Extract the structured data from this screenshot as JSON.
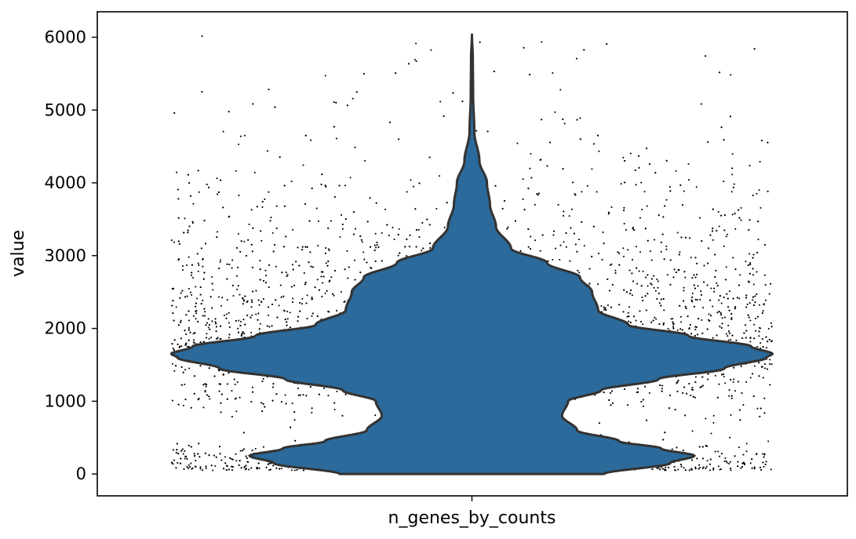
{
  "chart_data": {
    "type": "violin",
    "categories": [
      "n_genes_by_counts"
    ],
    "ylabel": "value",
    "xlabel": "",
    "ylim": [
      -300,
      6350
    ],
    "yticks": [
      0,
      1000,
      2000,
      3000,
      4000,
      5000,
      6000
    ],
    "grid": false,
    "legend": "none",
    "violin_color": "#2b6a9a",
    "outline_color": "#333333",
    "point_color": "#000000",
    "stats": {
      "min": 0,
      "max": 6050,
      "mode": 1650,
      "secondary_mode": 250,
      "approx_points": 5000
    },
    "density_profile": [
      {
        "value": 0,
        "halfwidth": 0.44
      },
      {
        "value": 150,
        "halfwidth": 0.66
      },
      {
        "value": 250,
        "halfwidth": 0.74
      },
      {
        "value": 350,
        "halfwidth": 0.63
      },
      {
        "value": 450,
        "halfwidth": 0.49
      },
      {
        "value": 600,
        "halfwidth": 0.35
      },
      {
        "value": 800,
        "halfwidth": 0.3
      },
      {
        "value": 1000,
        "halfwidth": 0.32
      },
      {
        "value": 1150,
        "halfwidth": 0.43
      },
      {
        "value": 1300,
        "halfwidth": 0.62
      },
      {
        "value": 1450,
        "halfwidth": 0.84
      },
      {
        "value": 1600,
        "halfwidth": 0.98
      },
      {
        "value": 1650,
        "halfwidth": 1.0
      },
      {
        "value": 1750,
        "halfwidth": 0.93
      },
      {
        "value": 1900,
        "halfwidth": 0.72
      },
      {
        "value": 2050,
        "halfwidth": 0.52
      },
      {
        "value": 2250,
        "halfwidth": 0.42
      },
      {
        "value": 2500,
        "halfwidth": 0.4
      },
      {
        "value": 2700,
        "halfwidth": 0.36
      },
      {
        "value": 2900,
        "halfwidth": 0.25
      },
      {
        "value": 3100,
        "halfwidth": 0.13
      },
      {
        "value": 3400,
        "halfwidth": 0.08
      },
      {
        "value": 3700,
        "halfwidth": 0.06
      },
      {
        "value": 4000,
        "halfwidth": 0.05
      },
      {
        "value": 4300,
        "halfwidth": 0.025
      },
      {
        "value": 4700,
        "halfwidth": 0.008
      },
      {
        "value": 5200,
        "halfwidth": 0.004
      },
      {
        "value": 5700,
        "halfwidth": 0.003
      },
      {
        "value": 6050,
        "halfwidth": 0.0
      }
    ]
  }
}
